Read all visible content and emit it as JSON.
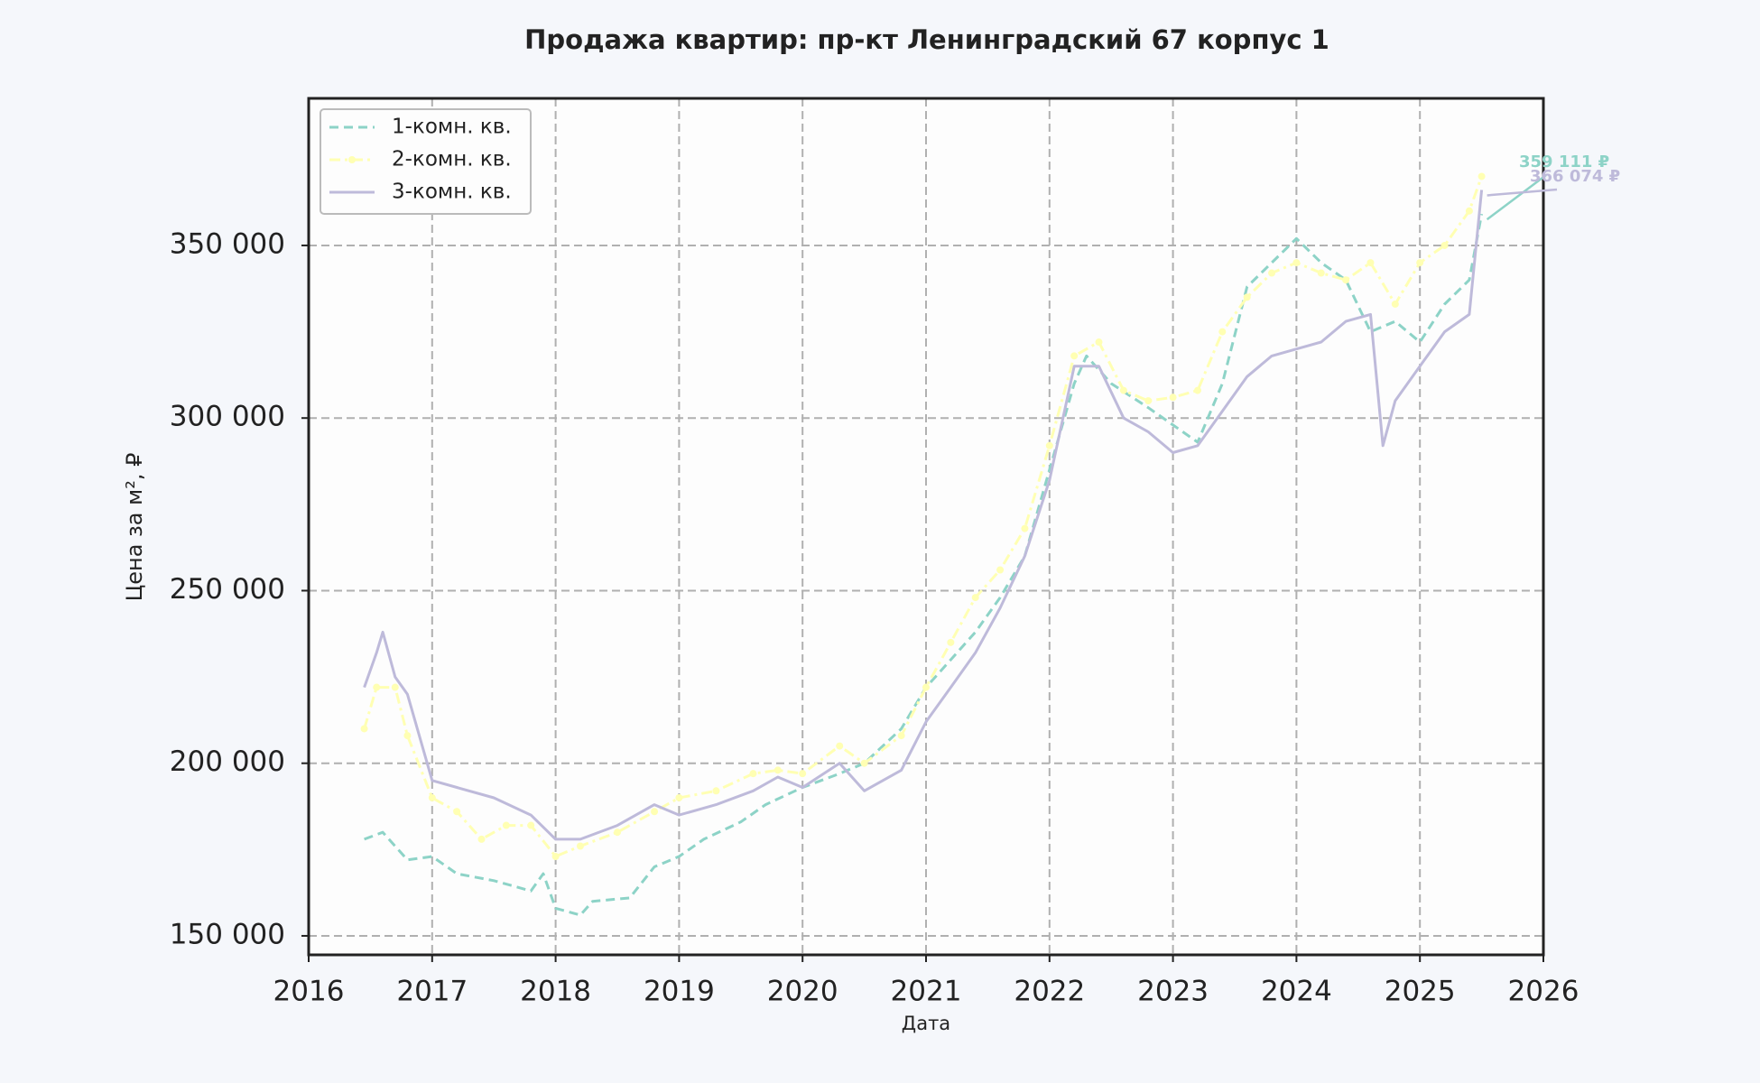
{
  "chart_data": {
    "type": "line",
    "title": "Продажа квартир: пр-кт Ленинградский 67 корпус 1",
    "x_label": "Дата",
    "y_label": "Цена за м², ₽",
    "xlim": [
      2016,
      2026
    ],
    "xticks": [
      2016,
      2017,
      2018,
      2019,
      2020,
      2021,
      2022,
      2023,
      2024,
      2025,
      2026
    ],
    "ylim": [
      144500,
      392600
    ],
    "yticks": [
      {
        "value": 150000,
        "label": "150 000"
      },
      {
        "value": 200000,
        "label": "200 000"
      },
      {
        "value": 250000,
        "label": "250 000"
      },
      {
        "value": 300000,
        "label": "300 000"
      },
      {
        "value": 350000,
        "label": "350 000"
      }
    ],
    "grid": true,
    "legend": "upper left",
    "series": [
      {
        "name": "1-комн. кв.",
        "color": "#8dd3c7",
        "linestyle": "dashed",
        "marker": null,
        "annotation": "359 111 ₽",
        "x": [
          2016.45,
          2016.6,
          2016.8,
          2017.0,
          2017.2,
          2017.5,
          2017.8,
          2017.9,
          2018.0,
          2018.2,
          2018.3,
          2018.6,
          2018.8,
          2019.0,
          2019.2,
          2019.5,
          2019.7,
          2020.0,
          2020.3,
          2020.5,
          2020.8,
          2021.0,
          2021.2,
          2021.4,
          2021.6,
          2021.8,
          2022.0,
          2022.2,
          2022.3,
          2022.5,
          2022.8,
          2023.0,
          2023.2,
          2023.4,
          2023.6,
          2023.8,
          2024.0,
          2024.2,
          2024.4,
          2024.6,
          2024.8,
          2025.0,
          2025.2,
          2025.4,
          2025.5
        ],
        "values": [
          178000,
          180000,
          172000,
          173000,
          168000,
          166000,
          163000,
          168000,
          158000,
          156000,
          160000,
          161000,
          170000,
          173000,
          178000,
          183000,
          188000,
          193000,
          197000,
          200000,
          210000,
          222000,
          230000,
          238000,
          248000,
          260000,
          285000,
          310000,
          318000,
          310000,
          303000,
          298000,
          293000,
          310000,
          338000,
          345000,
          352000,
          345000,
          340000,
          325000,
          328000,
          322000,
          333000,
          340000,
          359111
        ]
      },
      {
        "name": "2-комн. кв.",
        "color": "#ffffb3",
        "linestyle": "dashdot",
        "marker": "o",
        "annotation": null,
        "x": [
          2016.45,
          2016.55,
          2016.7,
          2016.8,
          2017.0,
          2017.2,
          2017.4,
          2017.6,
          2017.8,
          2018.0,
          2018.2,
          2018.5,
          2018.8,
          2019.0,
          2019.3,
          2019.6,
          2019.8,
          2020.0,
          2020.3,
          2020.5,
          2020.8,
          2021.0,
          2021.2,
          2021.4,
          2021.6,
          2021.8,
          2022.0,
          2022.2,
          2022.4,
          2022.6,
          2022.8,
          2023.0,
          2023.2,
          2023.4,
          2023.6,
          2023.8,
          2024.0,
          2024.2,
          2024.4,
          2024.6,
          2024.8,
          2025.0,
          2025.2,
          2025.4,
          2025.5
        ],
        "values": [
          210000,
          222000,
          222000,
          208000,
          190000,
          186000,
          178000,
          182000,
          182000,
          173000,
          176000,
          180000,
          186000,
          190000,
          192000,
          197000,
          198000,
          197000,
          205000,
          200000,
          208000,
          222000,
          235000,
          248000,
          256000,
          268000,
          292000,
          318000,
          322000,
          308000,
          305000,
          306000,
          308000,
          325000,
          335000,
          342000,
          345000,
          342000,
          340000,
          345000,
          333000,
          345000,
          350000,
          360000,
          370000
        ]
      },
      {
        "name": "3-комн. кв.",
        "color": "#bebada",
        "linestyle": "solid",
        "marker": null,
        "annotation": "366 074 ₽",
        "x": [
          2016.45,
          2016.55,
          2016.6,
          2016.7,
          2016.8,
          2017.0,
          2017.2,
          2017.5,
          2017.8,
          2018.0,
          2018.2,
          2018.5,
          2018.8,
          2019.0,
          2019.3,
          2019.6,
          2019.8,
          2020.0,
          2020.3,
          2020.5,
          2020.8,
          2021.0,
          2021.2,
          2021.4,
          2021.6,
          2021.8,
          2022.0,
          2022.2,
          2022.4,
          2022.6,
          2022.8,
          2023.0,
          2023.2,
          2023.4,
          2023.6,
          2023.8,
          2024.0,
          2024.2,
          2024.4,
          2024.6,
          2024.7,
          2024.8,
          2025.0,
          2025.2,
          2025.4,
          2025.5
        ],
        "values": [
          222000,
          232000,
          238000,
          225000,
          220000,
          195000,
          193000,
          190000,
          185000,
          178000,
          178000,
          182000,
          188000,
          185000,
          188000,
          192000,
          196000,
          193000,
          200000,
          192000,
          198000,
          212000,
          222000,
          232000,
          245000,
          260000,
          282000,
          315000,
          315000,
          300000,
          296000,
          290000,
          292000,
          302000,
          312000,
          318000,
          320000,
          322000,
          328000,
          330000,
          292000,
          305000,
          315000,
          325000,
          330000,
          366074
        ]
      }
    ]
  }
}
